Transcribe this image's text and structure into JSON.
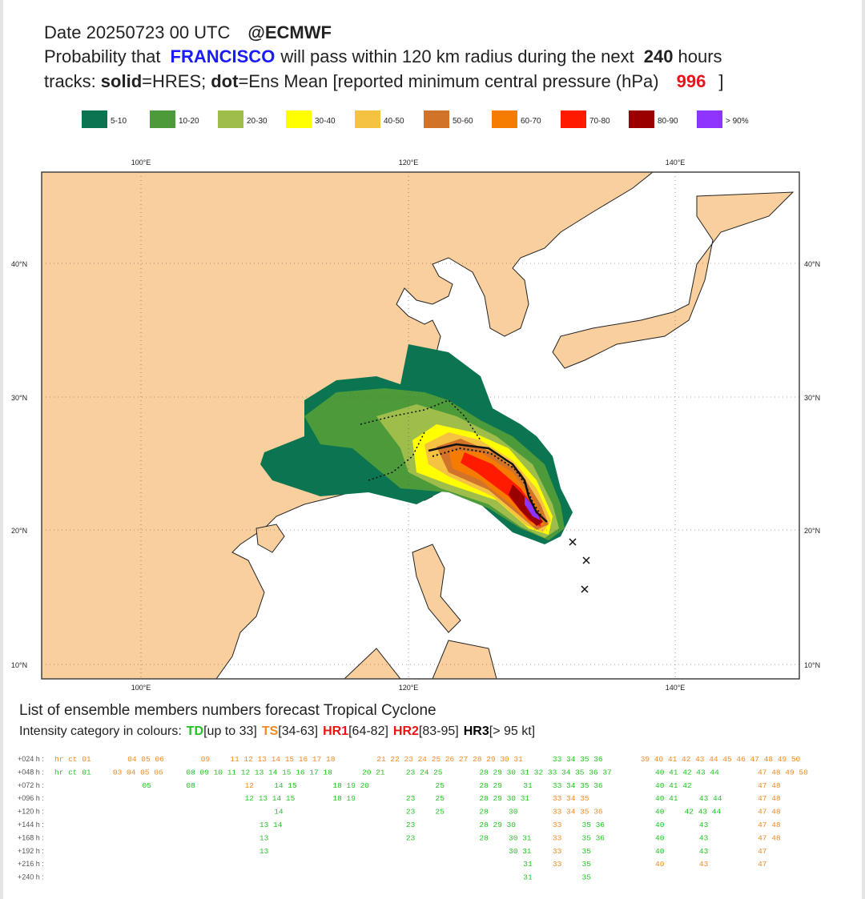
{
  "header": {
    "line1": [
      "Date 20250723 00 UTC",
      "@ECMWF"
    ],
    "line2": [
      "Probability that",
      "FRANCISCO",
      "will pass within 120 km radius during the next",
      "240",
      "hours"
    ],
    "line3": [
      "tracks:",
      "solid",
      "=HRES;",
      "dot",
      "=Ens Mean [reported minimum central pressure (hPa)",
      "996",
      "]"
    ]
  },
  "legend": {
    "labels": [
      "5-10",
      "10-20",
      "20-30",
      "30-40",
      "40-50",
      "50-60",
      "60-70",
      "70-80",
      "80-90",
      "> 90%"
    ],
    "colors": [
      "#0b7451",
      "#4d9a3a",
      "#9fbd4b",
      "#ffff00",
      "#f5c242",
      "#d1742a",
      "#f57c00",
      "#ff1a00",
      "#9b0000",
      "#8f34ff"
    ]
  },
  "map": {
    "lon_labels": [
      "100°E",
      "120°E",
      "140°E"
    ],
    "lat_labels": [
      "40°N",
      "30°N",
      "20°N",
      "10°N"
    ]
  },
  "members": {
    "title": "List of ensemble members numbers forecast Tropical Cyclone",
    "intensity": [
      [
        "Intensity category in colours:",
        null
      ],
      [
        "TD",
        "TD"
      ],
      [
        "[up to 33]",
        null
      ],
      [
        "TS",
        "TS"
      ],
      [
        "[34-63]",
        null
      ],
      [
        "HR1",
        "HR1"
      ],
      [
        "[64-82]",
        null
      ],
      [
        "HR2",
        "HR1"
      ],
      [
        "[83-95]",
        null
      ],
      [
        "HR3",
        "HR3"
      ],
      [
        "[> 95 kt]",
        null
      ]
    ],
    "category_colors": {
      "TD": "#22c322",
      "TS": "#f08a24",
      "HR1": "#ee1111",
      "HR3": "#000000"
    },
    "rows": [
      {
        "label": "+024 h :",
        "segments": [
          [
            "hr ct 01",
            "TS"
          ],
          [
            "04 05 06",
            "TS"
          ],
          [
            "09",
            "TS"
          ],
          [
            "11 12 13 14 15 16 17 18",
            "TS"
          ],
          [
            "21 22 23 24 25 26 27 28 29 30 31",
            "TS"
          ],
          [
            "33 34 35 36",
            "TD"
          ],
          [
            "39 40 41 42 43 44 45 46 47 48 49 50",
            "TS"
          ]
        ]
      },
      {
        "label": "+048 h :",
        "segments": [
          [
            "hr ct 01",
            "TD"
          ],
          [
            "03 04 05 06",
            "TS"
          ],
          [
            "08 09 10 11 12 13 14 15 16 17 18",
            "TD"
          ],
          [
            "20 21",
            "TD"
          ],
          [
            "23 24 25",
            "TD"
          ],
          [
            "28 29 30 31 32 33 34 35 36 37",
            "TD"
          ],
          [
            "40 41 42 43 44",
            "TD"
          ],
          [
            "47 48 49 50",
            "TS"
          ]
        ]
      },
      {
        "label": "+072 h :",
        "segments": [
          [
            "05",
            "TD"
          ],
          [
            "08",
            "TD"
          ],
          [
            "12",
            "TS"
          ],
          [
            "14 15",
            "TD"
          ],
          [
            "18 19 20",
            "TD"
          ],
          [
            "25",
            "TD"
          ],
          [
            "28 29",
            "TD"
          ],
          [
            "31",
            "TD"
          ],
          [
            "33 34 35 36",
            "TD"
          ],
          [
            "40 41 42",
            "TD"
          ],
          [
            "47 48",
            "TS"
          ]
        ]
      },
      {
        "label": "+096 h :",
        "segments": [
          [
            "12 13 14 15",
            "TD"
          ],
          [
            "18 19",
            "TD"
          ],
          [
            "23",
            "TD"
          ],
          [
            "25",
            "TD"
          ],
          [
            "28 29 30 31",
            "TD"
          ],
          [
            "33 34 35",
            "TS"
          ],
          [
            "40 41",
            "TD"
          ],
          [
            "43 44",
            "TD"
          ],
          [
            "47 48",
            "TS"
          ]
        ]
      },
      {
        "label": "+120 h :",
        "segments": [
          [
            "14",
            "TD"
          ],
          [
            "23",
            "TD"
          ],
          [
            "25",
            "TD"
          ],
          [
            "28",
            "TD"
          ],
          [
            "30",
            "TD"
          ],
          [
            "33 34 35 36",
            "TS"
          ],
          [
            "40",
            "TD"
          ],
          [
            "42 43 44",
            "TD"
          ],
          [
            "47 48",
            "TS"
          ]
        ]
      },
      {
        "label": "+144 h :",
        "segments": [
          [
            "13 14",
            "TD"
          ],
          [
            "23",
            "TD"
          ],
          [
            "28 29 30",
            "TD"
          ],
          [
            "33",
            "TS"
          ],
          [
            "35 36",
            "TD"
          ],
          [
            "40",
            "TD"
          ],
          [
            "43",
            "TD"
          ],
          [
            "47 48",
            "TS"
          ]
        ]
      },
      {
        "label": "+168 h :",
        "segments": [
          [
            "13",
            "TD"
          ],
          [
            "23",
            "TD"
          ],
          [
            "28",
            "TD"
          ],
          [
            "30 31",
            "TD"
          ],
          [
            "33",
            "TS"
          ],
          [
            "35 36",
            "TD"
          ],
          [
            "40",
            "TD"
          ],
          [
            "43",
            "TD"
          ],
          [
            "47 48",
            "TS"
          ]
        ]
      },
      {
        "label": "+192 h :",
        "segments": [
          [
            "13",
            "TD"
          ],
          [
            "30 31",
            "TD"
          ],
          [
            "33",
            "TS"
          ],
          [
            "35",
            "TD"
          ],
          [
            "40",
            "TD"
          ],
          [
            "43",
            "TD"
          ],
          [
            "47",
            "TS"
          ]
        ]
      },
      {
        "label": "+216 h :",
        "segments": [
          [
            "31",
            "TD"
          ],
          [
            "33",
            "TS"
          ],
          [
            "35",
            "TD"
          ],
          [
            "40",
            "TS"
          ],
          [
            "43",
            "TS"
          ],
          [
            "47",
            "TS"
          ]
        ]
      },
      {
        "label": "+240 h :",
        "segments": [
          [
            "31",
            "TD"
          ],
          [
            "35",
            "TD"
          ]
        ]
      }
    ]
  }
}
